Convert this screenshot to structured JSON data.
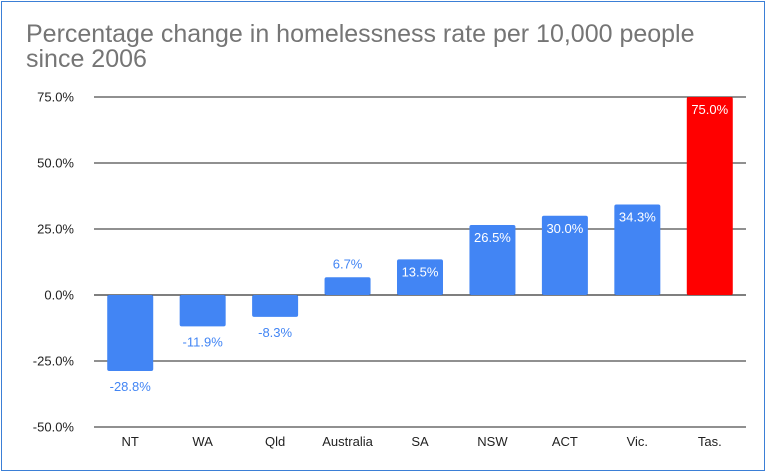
{
  "chart_data": {
    "type": "bar",
    "title": "Percentage change in homelessness rate per 10,000 people since 2006",
    "categories": [
      "NT",
      "WA",
      "Qld",
      "Australia",
      "SA",
      "NSW",
      "ACT",
      "Vic.",
      "Tas."
    ],
    "values": [
      -28.8,
      -11.9,
      -8.3,
      6.7,
      13.5,
      26.5,
      30.0,
      34.3,
      75.0
    ],
    "data_labels": [
      "-28.8%",
      "-11.9%",
      "-8.3%",
      "6.7%",
      "13.5%",
      "26.5%",
      "30.0%",
      "34.3%",
      "75.0%"
    ],
    "bar_colors": [
      "#4285f4",
      "#4285f4",
      "#4285f4",
      "#4285f4",
      "#4285f4",
      "#4285f4",
      "#4285f4",
      "#4285f4",
      "#ff0000"
    ],
    "y_ticks": [
      "75.0%",
      "50.0%",
      "25.0%",
      "0.0%",
      "-25.0%",
      "-50.0%"
    ],
    "y_tick_values": [
      75,
      50,
      25,
      0,
      -25,
      -50
    ],
    "ylim": [
      -50,
      75
    ],
    "xlabel": "",
    "ylabel": "",
    "grid": true
  }
}
